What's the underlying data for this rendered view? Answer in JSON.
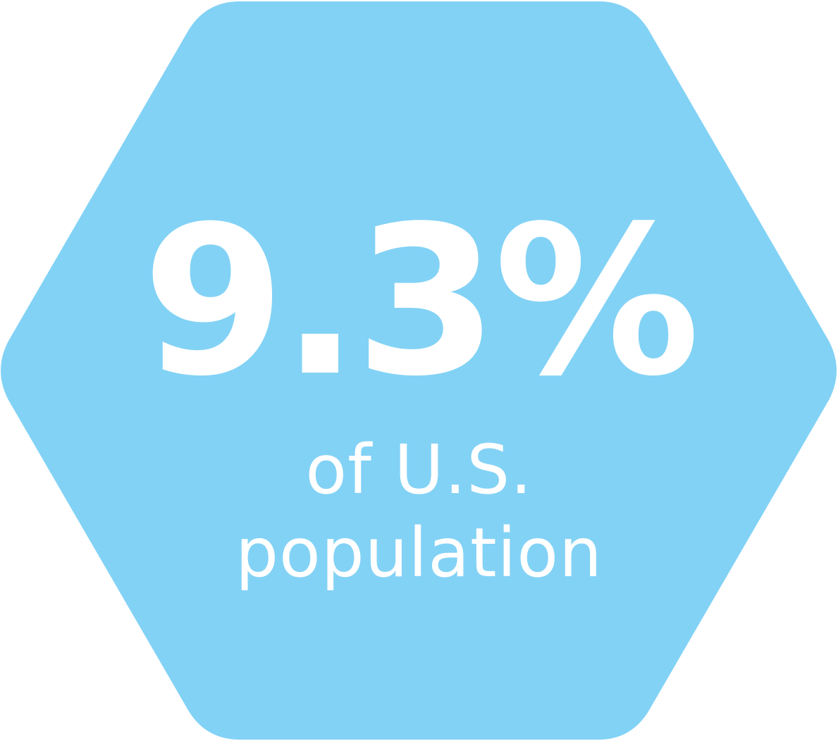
{
  "stat": {
    "value": "9.3%",
    "caption_line1": "of U.S.",
    "caption_line2": "population"
  },
  "colors": {
    "hexagon_fill": "#82d2f5",
    "text": "#ffffff"
  },
  "icons": {
    "shape": "hexagon-shape"
  }
}
